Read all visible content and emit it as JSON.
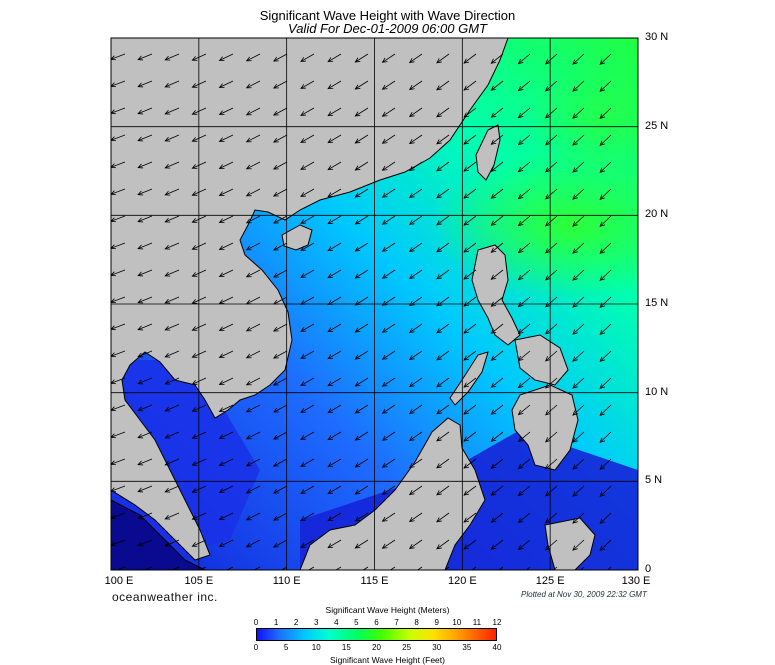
{
  "title": "Significant Wave Height with Wave Direction",
  "subtitle": "Valid For Dec-01-2009 06:00 GMT",
  "lon_labels": [
    "100 E",
    "105 E",
    "110 E",
    "115 E",
    "120 E",
    "125 E",
    "130 E"
  ],
  "lat_labels": [
    "30 N",
    "25 N",
    "20 N",
    "15 N",
    "10 N",
    "5 N",
    "0"
  ],
  "brand": "oceanweather inc.",
  "plotted": "Plotted at Nov 30, 2009 22:32 GMT",
  "colorbar": {
    "meters_title": "Significant Wave Height (Meters)",
    "meters_ticks": [
      "0",
      "1",
      "2",
      "3",
      "4",
      "5",
      "6",
      "7",
      "8",
      "9",
      "10",
      "11",
      "12"
    ],
    "feet_title": "Significant Wave Height (Feet)",
    "feet_ticks": [
      "0",
      "5",
      "10",
      "15",
      "20",
      "25",
      "30",
      "35",
      "40"
    ]
  },
  "colors": {
    "land": "#c0c0c0",
    "coast": "#000000",
    "deep": "#0a0aa0",
    "low": "#1a40ff",
    "mid": "#00c8ff",
    "high": "#20ff30",
    "arrow": "#000000"
  },
  "map_extent": {
    "lon_min": 100,
    "lon_max": 130,
    "lat_min": 0,
    "lat_max": 30
  }
}
